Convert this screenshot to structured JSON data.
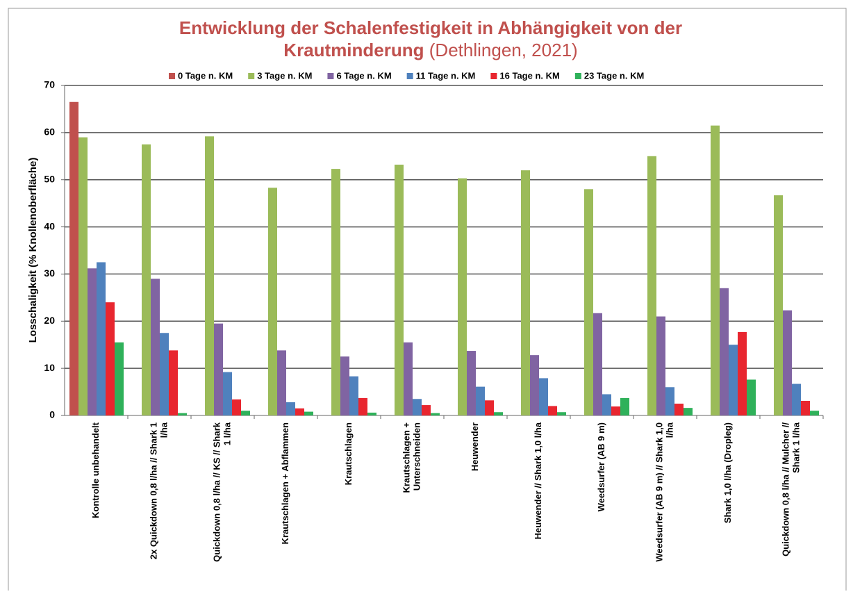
{
  "chart_data": {
    "type": "bar",
    "title": [
      "Entwicklung der Schalenfestigkeit in Abhängigkeit von der",
      "Krautminderung"
    ],
    "subtitle": "(Dethlingen, 2021)",
    "y_label": "Losschaligkeit (% Knollenoberfläche)",
    "categories": [
      [
        "Kontrolle unbehandelt"
      ],
      [
        "2x Quickdown 0,8 l/ha // Shark 1",
        "l/ha"
      ],
      [
        "Quickdown 0,8 l/ha // KS // Shark",
        "1 l/ha"
      ],
      [
        "Krautschlagen + Abflammen"
      ],
      [
        "Krautschlagen"
      ],
      [
        "Krautschlagen +",
        "Unterschneiden"
      ],
      [
        "Heuwender"
      ],
      [
        "Heuwender // Shark 1,0 l/ha"
      ],
      [
        "Weedsurfer (AB 9 m)"
      ],
      [
        "Weedsurfer (AB 9 m) // Shark 1,0",
        "l/ha"
      ],
      [
        "Shark 1,0 l/ha (Dropleg)"
      ],
      [
        "Quickdown 0,8 l/ha // Mulcher //",
        "Shark 1 l/ha"
      ]
    ],
    "series": [
      {
        "name": "0 Tage n. KM",
        "color": "#c0504d",
        "values": [
          66.5,
          null,
          null,
          null,
          null,
          null,
          null,
          null,
          null,
          null,
          null,
          null
        ]
      },
      {
        "name": "3 Tage n. KM",
        "color": "#9bbb59",
        "values": [
          59,
          57.5,
          59.2,
          48.3,
          52.3,
          53.2,
          50.3,
          52,
          48,
          55,
          61.5,
          46.7
        ]
      },
      {
        "name": "6 Tage n. KM",
        "color": "#8064a2",
        "values": [
          31.2,
          29,
          19.5,
          13.8,
          12.5,
          15.5,
          13.7,
          12.8,
          21.7,
          21,
          27,
          22.3
        ]
      },
      {
        "name": "11 Tage n. KM",
        "color": "#4f81bd",
        "values": [
          32.5,
          17.5,
          9.2,
          2.8,
          8.3,
          3.5,
          6.1,
          7.9,
          4.5,
          6,
          15,
          6.7
        ]
      },
      {
        "name": "16 Tage n. KM",
        "color": "#e8262f",
        "values": [
          24,
          13.8,
          3.4,
          1.5,
          3.7,
          2.2,
          3.2,
          2,
          1.9,
          2.5,
          17.7,
          3.1
        ]
      },
      {
        "name": "23 Tage n. KM",
        "color": "#2fb15a",
        "values": [
          15.5,
          0.5,
          1,
          0.8,
          0.6,
          0.5,
          0.7,
          0.7,
          3.7,
          1.6,
          7.6,
          1
        ]
      }
    ],
    "ylim": [
      0,
      70
    ],
    "yticks": [
      0,
      10,
      20,
      30,
      40,
      50,
      60,
      70
    ],
    "grid": true
  }
}
